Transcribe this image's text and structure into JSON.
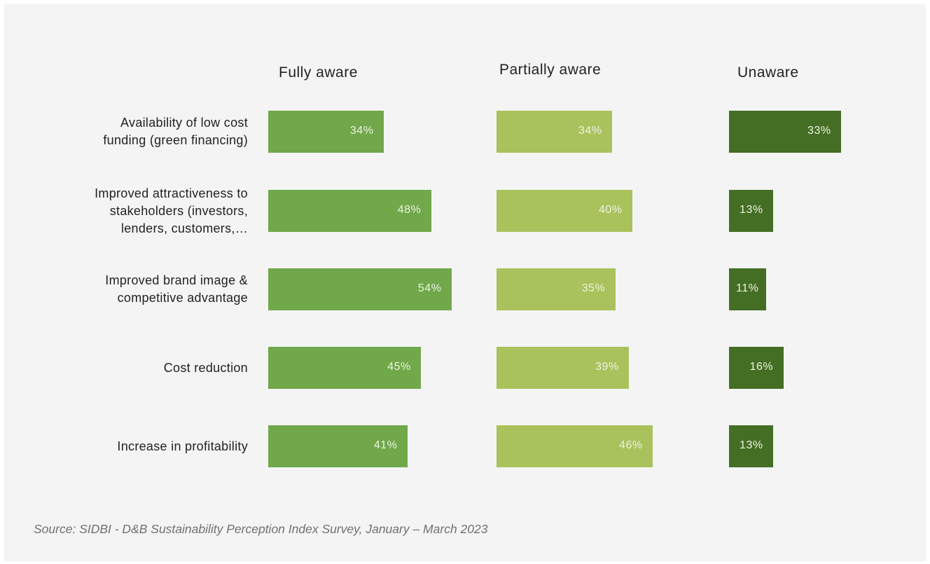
{
  "chart_data": {
    "type": "bar",
    "orientation": "horizontal",
    "layout": "small-multiples",
    "categories": [
      "Availability of low cost funding (green financing)",
      "Improved attractiveness to stakeholders (investors, lenders, customers,…",
      "Improved brand image & competitive advantage",
      "Cost reduction",
      "Increase in profitability"
    ],
    "category_lines": [
      [
        "Availability of low cost",
        "funding (green financing)"
      ],
      [
        "Improved attractiveness to",
        "stakeholders (investors,",
        "lenders, customers,…"
      ],
      [
        "Improved brand image &",
        "competitive advantage"
      ],
      [
        "Cost reduction"
      ],
      [
        "Increase in profitability"
      ]
    ],
    "series": [
      {
        "name": "Fully aware",
        "values": [
          34,
          48,
          54,
          45,
          41
        ],
        "labels": [
          "34%",
          "48%",
          "54%",
          "45%",
          "41%"
        ],
        "color": "#70a84a"
      },
      {
        "name": "Partially aware",
        "values": [
          34,
          40,
          35,
          39,
          46
        ],
        "labels": [
          "34%",
          "40%",
          "35%",
          "39%",
          "46%"
        ],
        "color": "#a9c25c"
      },
      {
        "name": "Unaware",
        "values": [
          33,
          13,
          11,
          16,
          13
        ],
        "labels": [
          "33%",
          "13%",
          "11%",
          "16%",
          "13%"
        ],
        "color": "#446e24"
      }
    ],
    "value_unit": "%",
    "grid": false,
    "legend": "none"
  },
  "source": "Source: SIDBI - D&B Sustainability Perception Index Survey, January – March 2023",
  "colors": {
    "background": "#f4f4f4",
    "bar_label": "#eef2e4"
  }
}
